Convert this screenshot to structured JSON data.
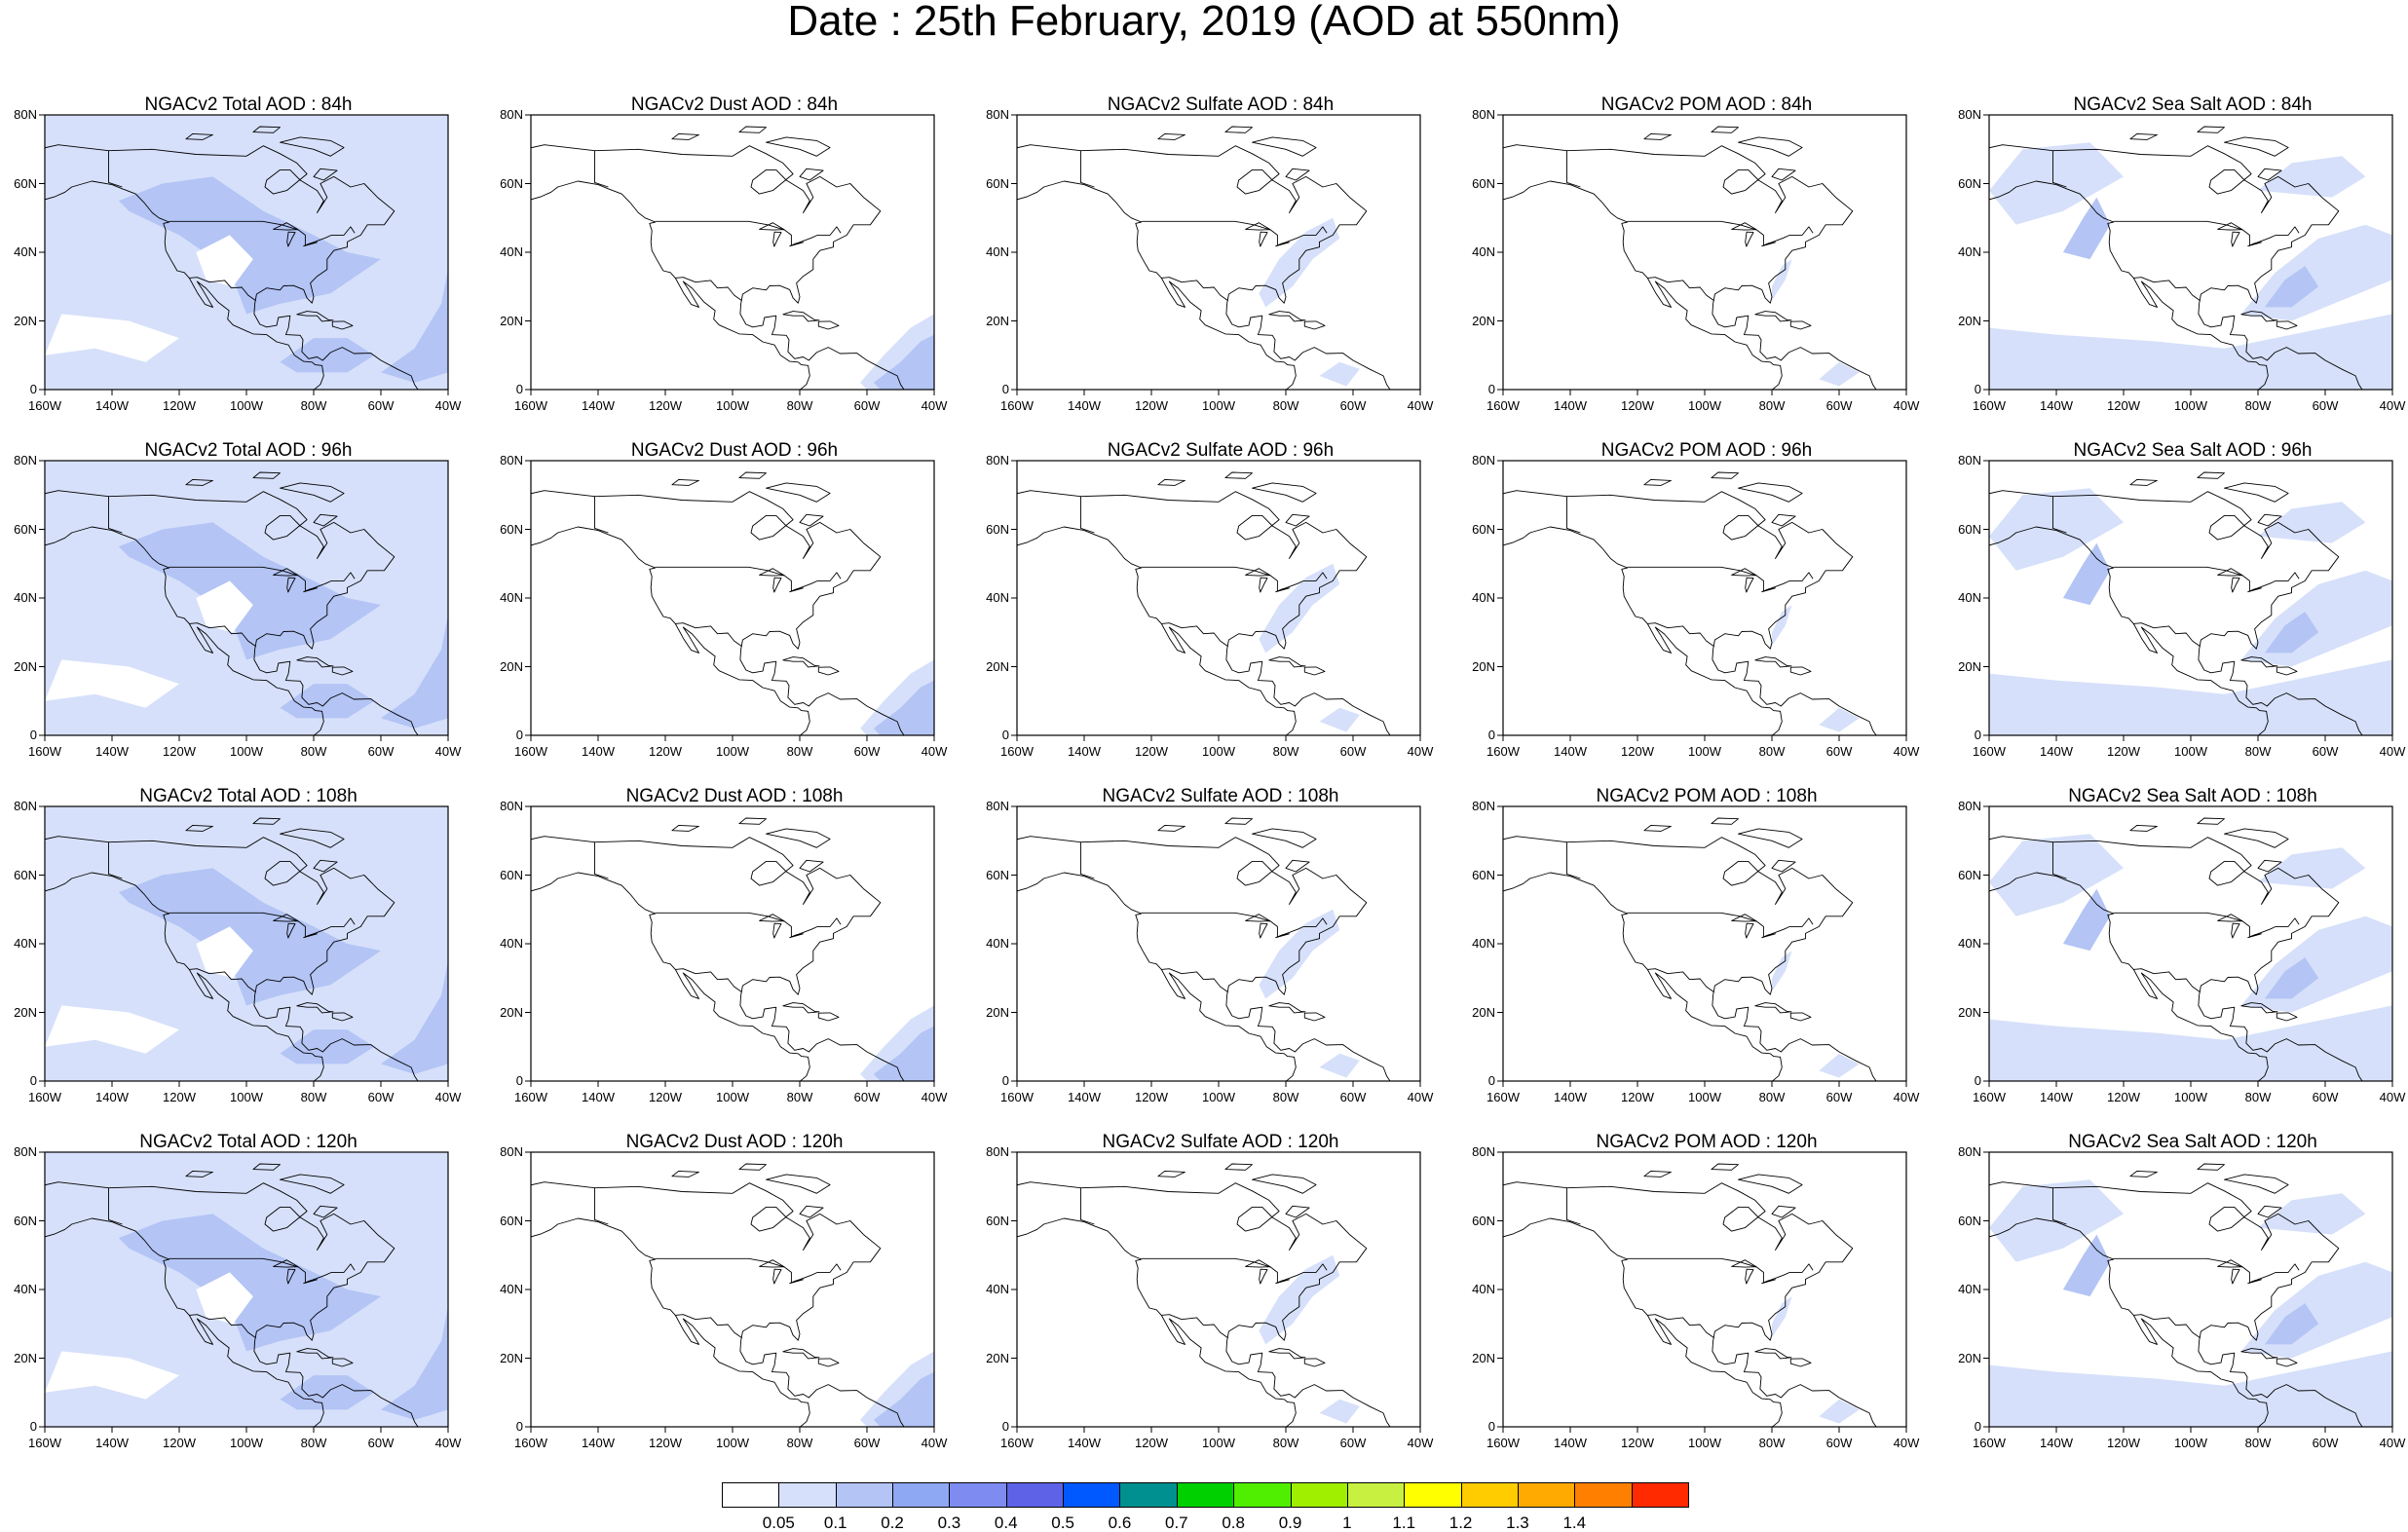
{
  "title": "Date : 25th February, 2019 (AOD at 550nm)",
  "lat_labels": [
    "80N",
    "60N",
    "40N",
    "20N",
    "0"
  ],
  "lon_labels": [
    "160W",
    "140W",
    "120W",
    "100W",
    "80W",
    "60W",
    "40W"
  ],
  "panels": [
    {
      "title": "NGACv2 Total AOD : 84h",
      "variable": "Total AOD",
      "forecast_hour": "84h",
      "coverage": "total"
    },
    {
      "title": "NGACv2 Dust AOD : 84h",
      "variable": "Dust AOD",
      "forecast_hour": "84h",
      "coverage": "dust"
    },
    {
      "title": "NGACv2 Sulfate AOD : 84h",
      "variable": "Sulfate AOD",
      "forecast_hour": "84h",
      "coverage": "sulfate"
    },
    {
      "title": "NGACv2 POM AOD : 84h",
      "variable": "POM AOD",
      "forecast_hour": "84h",
      "coverage": "pom"
    },
    {
      "title": "NGACv2 Sea Salt AOD : 84h",
      "variable": "Sea Salt AOD",
      "forecast_hour": "84h",
      "coverage": "seasalt"
    },
    {
      "title": "NGACv2 Total AOD : 96h",
      "variable": "Total AOD",
      "forecast_hour": "96h",
      "coverage": "total"
    },
    {
      "title": "NGACv2 Dust AOD : 96h",
      "variable": "Dust AOD",
      "forecast_hour": "96h",
      "coverage": "dust"
    },
    {
      "title": "NGACv2 Sulfate AOD : 96h",
      "variable": "Sulfate AOD",
      "forecast_hour": "96h",
      "coverage": "sulfate"
    },
    {
      "title": "NGACv2 POM AOD : 96h",
      "variable": "POM AOD",
      "forecast_hour": "96h",
      "coverage": "pom"
    },
    {
      "title": "NGACv2 Sea Salt AOD : 96h",
      "variable": "Sea Salt AOD",
      "forecast_hour": "96h",
      "coverage": "seasalt"
    },
    {
      "title": "NGACv2 Total AOD : 108h",
      "variable": "Total AOD",
      "forecast_hour": "108h",
      "coverage": "total"
    },
    {
      "title": "NGACv2 Dust AOD : 108h",
      "variable": "Dust AOD",
      "forecast_hour": "108h",
      "coverage": "dust"
    },
    {
      "title": "NGACv2 Sulfate AOD : 108h",
      "variable": "Sulfate AOD",
      "forecast_hour": "108h",
      "coverage": "sulfate"
    },
    {
      "title": "NGACv2 POM AOD : 108h",
      "variable": "POM AOD",
      "forecast_hour": "108h",
      "coverage": "pom"
    },
    {
      "title": "NGACv2 Sea Salt AOD : 108h",
      "variable": "Sea Salt AOD",
      "forecast_hour": "108h",
      "coverage": "seasalt"
    },
    {
      "title": "NGACv2 Total AOD : 120h",
      "variable": "Total AOD",
      "forecast_hour": "120h",
      "coverage": "total"
    },
    {
      "title": "NGACv2 Dust AOD : 120h",
      "variable": "Dust AOD",
      "forecast_hour": "120h",
      "coverage": "dust"
    },
    {
      "title": "NGACv2 Sulfate AOD : 120h",
      "variable": "Sulfate AOD",
      "forecast_hour": "120h",
      "coverage": "sulfate"
    },
    {
      "title": "NGACv2 POM AOD : 120h",
      "variable": "POM AOD",
      "forecast_hour": "120h",
      "coverage": "pom"
    },
    {
      "title": "NGACv2 Sea Salt  AOD : 120h",
      "variable": "Sea Salt AOD",
      "forecast_hour": "120h",
      "coverage": "seasalt"
    }
  ],
  "colorbar": {
    "tick_labels": [
      "0.05",
      "0.1",
      "0.2",
      "0.3",
      "0.4",
      "0.5",
      "0.6",
      "0.7",
      "0.8",
      "0.9",
      "1",
      "1.1",
      "1.2",
      "1.3",
      "1.4"
    ],
    "colors": [
      "#ffffff",
      "#d6e0fa",
      "#b3c4f5",
      "#8ea8f4",
      "#7e8cf2",
      "#5d62e6",
      "#0058ff",
      "#009090",
      "#00d000",
      "#50ee00",
      "#a0ee00",
      "#c8f040",
      "#ffff00",
      "#ffcc00",
      "#ffaa00",
      "#ff8000",
      "#ff2a00"
    ]
  }
}
